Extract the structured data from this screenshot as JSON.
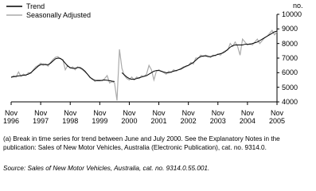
{
  "chart_data": {
    "type": "line",
    "unit_label": "no.",
    "x": [
      "1996-11",
      "1996-12",
      "1997-01",
      "1997-02",
      "1997-03",
      "1997-04",
      "1997-05",
      "1997-06",
      "1997-07",
      "1997-08",
      "1997-09",
      "1997-10",
      "1997-11",
      "1997-12",
      "1998-01",
      "1998-02",
      "1998-03",
      "1998-04",
      "1998-05",
      "1998-06",
      "1998-07",
      "1998-08",
      "1998-09",
      "1998-10",
      "1998-11",
      "1998-12",
      "1999-01",
      "1999-02",
      "1999-03",
      "1999-04",
      "1999-05",
      "1999-06",
      "1999-07",
      "1999-08",
      "1999-09",
      "1999-10",
      "1999-11",
      "1999-12",
      "2000-01",
      "2000-02",
      "2000-03",
      "2000-04",
      "2000-05",
      "2000-06",
      "2000-07",
      "2000-08",
      "2000-09",
      "2000-10",
      "2000-11",
      "2000-12",
      "2001-01",
      "2001-02",
      "2001-03",
      "2001-04",
      "2001-05",
      "2001-06",
      "2001-07",
      "2001-08",
      "2001-09",
      "2001-10",
      "2001-11",
      "2001-12",
      "2002-01",
      "2002-02",
      "2002-03",
      "2002-04",
      "2002-05",
      "2002-06",
      "2002-07",
      "2002-08",
      "2002-09",
      "2002-10",
      "2002-11",
      "2002-12",
      "2003-01",
      "2003-02",
      "2003-03",
      "2003-04",
      "2003-05",
      "2003-06",
      "2003-07",
      "2003-08",
      "2003-09",
      "2003-10",
      "2003-11",
      "2003-12",
      "2004-01",
      "2004-02",
      "2004-03",
      "2004-04",
      "2004-05",
      "2004-06",
      "2004-07",
      "2004-08",
      "2004-09",
      "2004-10",
      "2004-11",
      "2004-12",
      "2005-01",
      "2005-02",
      "2005-03",
      "2005-04",
      "2005-05",
      "2005-06",
      "2005-07",
      "2005-08",
      "2005-09",
      "2005-10",
      "2005-11"
    ],
    "series": [
      {
        "name": "Trend",
        "color": "#000000",
        "values": [
          5700,
          5720,
          5750,
          5780,
          5800,
          5820,
          5850,
          5900,
          6000,
          6150,
          6300,
          6450,
          6550,
          6580,
          6550,
          6550,
          6650,
          6800,
          6950,
          7000,
          6980,
          6850,
          6650,
          6450,
          6350,
          6300,
          6300,
          6350,
          6350,
          6250,
          6100,
          5900,
          5700,
          5550,
          5480,
          5450,
          5450,
          5480,
          5500,
          5480,
          5450,
          5420,
          5400,
          null,
          null,
          6000,
          5850,
          5700,
          5600,
          5550,
          5550,
          5600,
          5650,
          5700,
          5750,
          5800,
          5900,
          6000,
          6100,
          6150,
          6150,
          6100,
          6050,
          6000,
          6000,
          6050,
          6100,
          6150,
          6200,
          6250,
          6350,
          6450,
          6500,
          6600,
          6700,
          6850,
          7000,
          7100,
          7150,
          7150,
          7100,
          7100,
          7150,
          7200,
          7250,
          7300,
          7350,
          7450,
          7600,
          7750,
          7850,
          7900,
          7900,
          7900,
          7900,
          7950,
          7950,
          7950,
          8000,
          8050,
          8100,
          8200,
          8300,
          8400,
          8500,
          8600,
          8700,
          8800,
          8850
        ]
      },
      {
        "name": "Seasonally Adjusted",
        "color": "#aaaaaa",
        "values": [
          5650,
          5800,
          5700,
          6050,
          5750,
          5900,
          5800,
          6000,
          5950,
          6200,
          6400,
          6500,
          6650,
          6500,
          6600,
          6450,
          6700,
          6900,
          7050,
          7100,
          6950,
          6900,
          6200,
          6500,
          6300,
          6400,
          6200,
          6400,
          6300,
          6200,
          6050,
          5900,
          5650,
          5600,
          5400,
          5500,
          5500,
          5450,
          5600,
          5800,
          5300,
          5400,
          5300,
          4100,
          7600,
          6300,
          5800,
          5600,
          5500,
          5700,
          5500,
          5700,
          5600,
          5800,
          5750,
          5900,
          6500,
          6200,
          5500,
          6100,
          6200,
          6100,
          6000,
          5900,
          6100,
          6000,
          6200,
          6100,
          6200,
          6300,
          6400,
          6400,
          6500,
          6700,
          6600,
          7000,
          7000,
          7200,
          7100,
          7200,
          7150,
          7050,
          7200,
          7150,
          7300,
          7200,
          7400,
          7500,
          7550,
          8000,
          7800,
          8100,
          7800,
          7200,
          8300,
          8100,
          7900,
          8000,
          7900,
          8100,
          8300,
          8000,
          8200,
          8400,
          8500,
          8700,
          8900,
          8600,
          8800
        ]
      }
    ],
    "xticks": [
      {
        "value": "1996-11",
        "label": "Nov 1996"
      },
      {
        "value": "1997-11",
        "label": "Nov 1997"
      },
      {
        "value": "1998-11",
        "label": "Nov 1998"
      },
      {
        "value": "1999-11",
        "label": "Nov 1999"
      },
      {
        "value": "2000-11",
        "label": "Nov 2000"
      },
      {
        "value": "2001-11",
        "label": "Nov 2001"
      },
      {
        "value": "2002-11",
        "label": "Nov 2002"
      },
      {
        "value": "2003-11",
        "label": "Nov 2003"
      },
      {
        "value": "2004-11",
        "label": "Nov 2004"
      },
      {
        "value": "2005-11",
        "label": "Nov 2005"
      }
    ],
    "ylim": [
      4000,
      10000
    ],
    "yticks": [
      4000,
      5000,
      6000,
      7000,
      8000,
      9000,
      10000
    ],
    "footnote": "(a) Break in time series for trend between June and July 2000. See the Explanatory Notes in the publication: Sales of New Motor Vehicles, Australia (Electronic Publication), cat. no. 9314.0.",
    "source": "Source: Sales of New Motor Vehicles, Australia, cat. no. 9314.0.55.001."
  }
}
